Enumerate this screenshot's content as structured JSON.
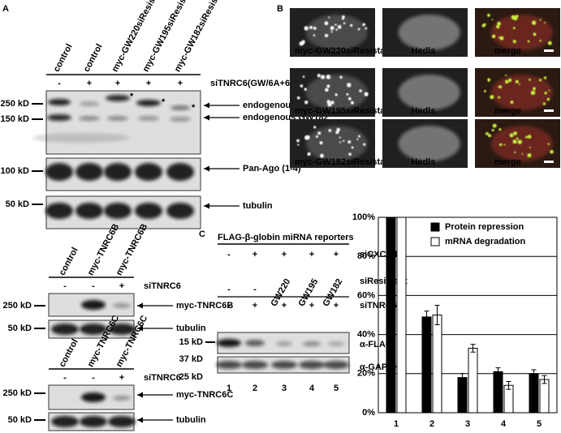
{
  "panel_a": {
    "label": "A",
    "blot1": {
      "lanes": [
        "control",
        "control",
        "myc-GW220siResistant",
        "myc-GW195siResistant",
        "myc-GW182siResistant"
      ],
      "treatment": [
        "-",
        "+",
        "+",
        "+",
        "+"
      ],
      "treatment_label": "siTNRC6(GW/6A+6B+6C)",
      "markers": [
        "250 kD",
        "150 kD",
        "100 kD",
        "50 kD"
      ],
      "bands": [
        "endogenous GW220",
        "endogenous GW182",
        "Pan-Ago (1-4)",
        "tubulin"
      ],
      "asterisks": [
        "*",
        "*",
        "*"
      ]
    },
    "blot2": {
      "lanes": [
        "control",
        "myc-TNRC6B",
        "myc-TNRC6B"
      ],
      "treatment": [
        "-",
        "-",
        "+"
      ],
      "treatment_label": "siTNRC6",
      "markers": [
        "250 kD",
        "50 kD"
      ],
      "bands": [
        "myc-TNRC6B",
        "tubulin"
      ]
    },
    "blot3": {
      "lanes": [
        "control",
        "myc-TNRC6C",
        "myc-TNRC6C"
      ],
      "treatment": [
        "-",
        "-",
        "+"
      ],
      "treatment_label": "siTNRC6",
      "markers": [
        "250 kD",
        "50 kD"
      ],
      "bands": [
        "myc-TNRC6C",
        "tubulin"
      ]
    }
  },
  "panel_b": {
    "label": "B",
    "rows": [
      [
        "myc-GW220siResistant",
        "Hedls",
        "merge"
      ],
      [
        "myc-GW195siResistant",
        "Hedls",
        "merge"
      ],
      [
        "myc-GW182siResistant",
        "Hedls",
        "merge"
      ]
    ]
  },
  "panel_c": {
    "label": "C",
    "title": "FLAG-β-globin miRNA reporters",
    "conditions": [
      {
        "name": "siCXCR4",
        "values": [
          "-",
          "+",
          "+",
          "+",
          "+"
        ]
      },
      {
        "name": "siResistant",
        "values": [
          "-",
          "-",
          "GW220",
          "GW195",
          "GW182"
        ]
      },
      {
        "name": "siTNRC6",
        "values": [
          "-",
          "+",
          "+",
          "+",
          "+"
        ]
      }
    ],
    "markers": [
      "15 kD",
      "37 kD",
      "25 kD"
    ],
    "bands": [
      "α-FLAG",
      "α-GAPDH"
    ],
    "lanes": [
      "1",
      "2",
      "3",
      "4",
      "5"
    ]
  },
  "chart_data": {
    "type": "bar",
    "categories": [
      "1",
      "2",
      "3",
      "4",
      "5"
    ],
    "ylim": [
      0,
      100
    ],
    "yticks": [
      {
        "value": 0,
        "label": "0%"
      },
      {
        "value": 20,
        "label": "20%"
      },
      {
        "value": 40,
        "label": "40%"
      },
      {
        "value": 60,
        "label": "60%"
      },
      {
        "value": 80,
        "label": "80%"
      },
      {
        "value": 100,
        "label": "100%"
      }
    ],
    "grid": true,
    "legend": "upper-right",
    "series": [
      {
        "name": "Protein repression",
        "color": "#000000",
        "values": [
          100,
          49,
          18,
          21,
          20
        ],
        "errors": [
          null,
          3,
          2,
          2,
          2
        ]
      },
      {
        "name": "mRNA degradation",
        "color": "#ffffff",
        "values": [
          100,
          50,
          33,
          14,
          17
        ],
        "errors": [
          null,
          5,
          2,
          2,
          2
        ]
      }
    ]
  }
}
